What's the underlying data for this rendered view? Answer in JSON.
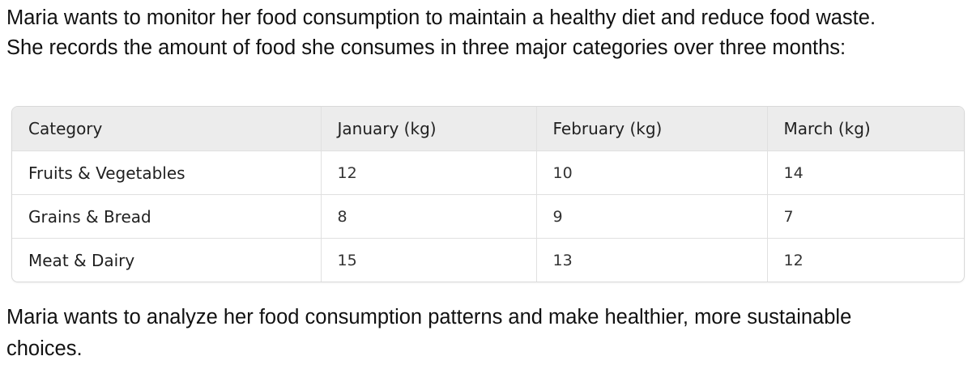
{
  "intro": {
    "line1": "Maria wants to monitor her food consumption to maintain a healthy diet and reduce food waste.",
    "line2": "She records the amount of food she consumes in three major categories over three months:"
  },
  "table": {
    "headers": [
      "Category",
      "January (kg)",
      "February (kg)",
      "March (kg)"
    ],
    "rows": [
      [
        "Fruits & Vegetables",
        "12",
        "10",
        "14"
      ],
      [
        "Grains & Bread",
        "8",
        "9",
        "7"
      ],
      [
        "Meat & Dairy",
        "15",
        "13",
        "12"
      ]
    ]
  },
  "outro": {
    "line1": "Maria wants to analyze her food consumption patterns and make healthier, more sustainable",
    "line2": "choices."
  }
}
